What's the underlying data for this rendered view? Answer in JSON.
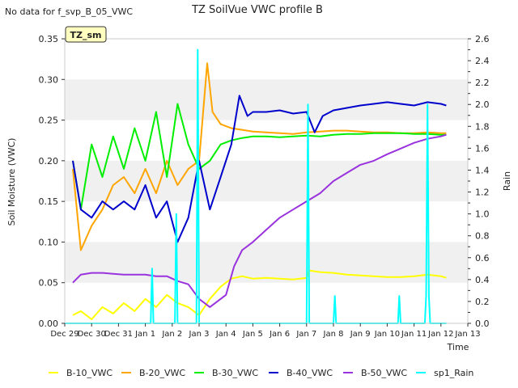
{
  "notice": "No data for f_svp_B_05_VWC",
  "site_tag": "TZ_sm",
  "chart_data": {
    "type": "line",
    "title": "TZ SoilVue VWC profile B",
    "xlabel": "Time",
    "ylabel": "Soil Moisture (VWC)",
    "y2label": "Rain",
    "ylim": [
      0,
      0.35
    ],
    "y2lim": [
      0,
      2.6
    ],
    "xlim": [
      0,
      15
    ],
    "x_ticks": [
      {
        "x": 0,
        "label": "Dec 29"
      },
      {
        "x": 1,
        "label": "Dec 30"
      },
      {
        "x": 2,
        "label": "Dec 31"
      },
      {
        "x": 3,
        "label": "Jan 1"
      },
      {
        "x": 4,
        "label": "Jan 2"
      },
      {
        "x": 5,
        "label": "Jan 3"
      },
      {
        "x": 6,
        "label": "Jan 4"
      },
      {
        "x": 7,
        "label": "Jan 5"
      },
      {
        "x": 8,
        "label": "Jan 6"
      },
      {
        "x": 9,
        "label": "Jan 7"
      },
      {
        "x": 10,
        "label": "Jan 8"
      },
      {
        "x": 11,
        "label": "Jan 9"
      },
      {
        "x": 12,
        "label": "Jan 10"
      },
      {
        "x": 13,
        "label": "Jan 11"
      },
      {
        "x": 14,
        "label": "Jan 12"
      },
      {
        "x": 15,
        "label": "Jan 13"
      }
    ],
    "y_ticks": [
      {
        "v": 0.0,
        "label": "0.00"
      },
      {
        "v": 0.05,
        "label": "0.05"
      },
      {
        "v": 0.1,
        "label": "0.10"
      },
      {
        "v": 0.15,
        "label": "0.15"
      },
      {
        "v": 0.2,
        "label": "0.20"
      },
      {
        "v": 0.25,
        "label": "0.25"
      },
      {
        "v": 0.3,
        "label": "0.30"
      },
      {
        "v": 0.35,
        "label": "0.35"
      }
    ],
    "y2_ticks": [
      {
        "v": 0.0,
        "label": "0.0"
      },
      {
        "v": 0.2,
        "label": "0.2"
      },
      {
        "v": 0.4,
        "label": "0.4"
      },
      {
        "v": 0.6,
        "label": "0.6"
      },
      {
        "v": 0.8,
        "label": "0.8"
      },
      {
        "v": 1.0,
        "label": "1.0"
      },
      {
        "v": 1.2,
        "label": "1.2"
      },
      {
        "v": 1.4,
        "label": "1.4"
      },
      {
        "v": 1.6,
        "label": "1.6"
      },
      {
        "v": 1.8,
        "label": "1.8"
      },
      {
        "v": 2.0,
        "label": "2.0"
      },
      {
        "v": 2.2,
        "label": "2.2"
      },
      {
        "v": 2.4,
        "label": "2.4"
      },
      {
        "v": 2.6,
        "label": "2.6"
      }
    ],
    "grid_bands": true,
    "legend_position": "bottom",
    "series": [
      {
        "name": "B-10_VWC",
        "axis": "left",
        "color": "#ffff00",
        "x": [
          0.3,
          0.6,
          1.0,
          1.4,
          1.8,
          2.2,
          2.6,
          3.0,
          3.4,
          3.8,
          4.2,
          4.6,
          5.0,
          5.4,
          5.8,
          6.2,
          6.6,
          7.0,
          7.5,
          8.0,
          8.5,
          9.0,
          9.1,
          9.5,
          10.0,
          10.5,
          11.0,
          11.5,
          12.0,
          12.5,
          13.0,
          13.5,
          14.0,
          14.2
        ],
        "y": [
          0.01,
          0.015,
          0.005,
          0.02,
          0.012,
          0.025,
          0.015,
          0.03,
          0.02,
          0.035,
          0.025,
          0.02,
          0.01,
          0.03,
          0.045,
          0.055,
          0.058,
          0.055,
          0.056,
          0.055,
          0.054,
          0.056,
          0.065,
          0.063,
          0.062,
          0.06,
          0.059,
          0.058,
          0.057,
          0.057,
          0.058,
          0.06,
          0.058,
          0.056
        ]
      },
      {
        "name": "B-20_VWC",
        "axis": "left",
        "color": "#ffa500",
        "x": [
          0.3,
          0.6,
          1.0,
          1.4,
          1.8,
          2.2,
          2.6,
          3.0,
          3.4,
          3.8,
          4.2,
          4.6,
          5.0,
          5.3,
          5.5,
          5.8,
          6.2,
          6.6,
          7.0,
          7.5,
          8.0,
          8.5,
          9.0,
          9.5,
          10.0,
          10.5,
          11.0,
          11.5,
          12.0,
          12.5,
          13.0,
          13.5,
          14.0,
          14.2
        ],
        "y": [
          0.19,
          0.09,
          0.12,
          0.14,
          0.17,
          0.18,
          0.16,
          0.19,
          0.16,
          0.2,
          0.17,
          0.19,
          0.2,
          0.32,
          0.26,
          0.245,
          0.24,
          0.238,
          0.236,
          0.235,
          0.234,
          0.233,
          0.235,
          0.236,
          0.237,
          0.237,
          0.236,
          0.235,
          0.235,
          0.234,
          0.234,
          0.235,
          0.234,
          0.234
        ]
      },
      {
        "name": "B-30_VWC",
        "axis": "left",
        "color": "#00ee00",
        "x": [
          0.3,
          0.6,
          1.0,
          1.4,
          1.8,
          2.2,
          2.6,
          3.0,
          3.4,
          3.8,
          4.2,
          4.6,
          5.0,
          5.4,
          5.8,
          6.2,
          6.6,
          7.0,
          7.5,
          8.0,
          8.5,
          9.0,
          9.5,
          10.0,
          10.5,
          11.0,
          11.5,
          12.0,
          12.5,
          13.0,
          13.5,
          14.0,
          14.2
        ],
        "y": [
          0.2,
          0.14,
          0.22,
          0.18,
          0.23,
          0.19,
          0.24,
          0.2,
          0.26,
          0.18,
          0.27,
          0.22,
          0.19,
          0.2,
          0.22,
          0.225,
          0.228,
          0.23,
          0.23,
          0.229,
          0.23,
          0.231,
          0.23,
          0.232,
          0.233,
          0.233,
          0.234,
          0.234,
          0.234,
          0.233,
          0.233,
          0.232,
          0.232
        ]
      },
      {
        "name": "B-40_VWC",
        "axis": "left",
        "color": "#0000cc",
        "x": [
          0.3,
          0.6,
          1.0,
          1.4,
          1.8,
          2.2,
          2.6,
          3.0,
          3.4,
          3.8,
          4.2,
          4.6,
          5.0,
          5.4,
          5.8,
          6.2,
          6.5,
          6.8,
          7.0,
          7.5,
          8.0,
          8.5,
          9.0,
          9.3,
          9.6,
          10.0,
          10.5,
          11.0,
          11.5,
          12.0,
          12.5,
          13.0,
          13.5,
          14.0,
          14.2
        ],
        "y": [
          0.2,
          0.14,
          0.13,
          0.15,
          0.14,
          0.15,
          0.14,
          0.17,
          0.13,
          0.15,
          0.1,
          0.13,
          0.2,
          0.14,
          0.18,
          0.22,
          0.28,
          0.255,
          0.26,
          0.26,
          0.262,
          0.258,
          0.26,
          0.235,
          0.255,
          0.262,
          0.265,
          0.268,
          0.27,
          0.272,
          0.27,
          0.268,
          0.272,
          0.27,
          0.268
        ]
      },
      {
        "name": "B-50_VWC",
        "axis": "left",
        "color": "#9933dd",
        "x": [
          0.3,
          0.6,
          1.0,
          1.4,
          1.8,
          2.2,
          2.6,
          3.0,
          3.4,
          3.8,
          4.2,
          4.6,
          5.0,
          5.4,
          5.8,
          6.0,
          6.3,
          6.6,
          7.0,
          7.5,
          8.0,
          8.5,
          9.0,
          9.5,
          10.0,
          10.5,
          11.0,
          11.5,
          12.0,
          12.5,
          13.0,
          13.5,
          14.0,
          14.2
        ],
        "y": [
          0.05,
          0.06,
          0.062,
          0.062,
          0.061,
          0.06,
          0.06,
          0.06,
          0.058,
          0.058,
          0.052,
          0.048,
          0.03,
          0.02,
          0.03,
          0.035,
          0.07,
          0.09,
          0.1,
          0.115,
          0.13,
          0.14,
          0.15,
          0.16,
          0.175,
          0.185,
          0.195,
          0.2,
          0.208,
          0.215,
          0.222,
          0.227,
          0.23,
          0.232
        ]
      },
      {
        "name": "sp1_Rain",
        "axis": "right",
        "color": "#00ffff",
        "x": [
          0.0,
          3.2,
          3.25,
          3.3,
          4.1,
          4.15,
          4.2,
          4.9,
          4.95,
          5.0,
          9.0,
          9.05,
          9.1,
          10.0,
          10.05,
          10.1,
          12.4,
          12.45,
          12.5,
          13.4,
          13.45,
          13.5,
          13.55,
          13.6,
          14.2
        ],
        "y": [
          0.0,
          0.0,
          0.5,
          0.0,
          0.0,
          1.0,
          0.0,
          0.0,
          2.5,
          0.0,
          0.0,
          2.0,
          0.0,
          0.0,
          0.25,
          0.0,
          0.0,
          0.25,
          0.0,
          0.0,
          0.25,
          2.0,
          0.25,
          0.0,
          0.0
        ]
      }
    ]
  }
}
